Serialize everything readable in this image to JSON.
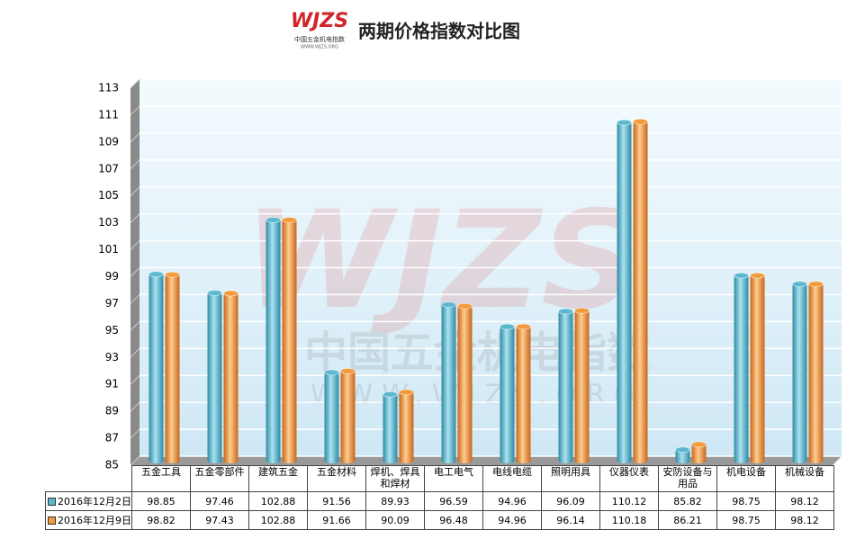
{
  "chart_data": {
    "type": "bar",
    "title": "两期价格指数对比图",
    "logo": "WJZS",
    "logo_subtitle": "中国五金机电指数",
    "logo_url": "WWW.WJZS.ORG",
    "categories": [
      "五金工具",
      "五金零部件",
      "建筑五金",
      "五金材料",
      "焊机、焊具和焊材",
      "电工电气",
      "电线电缆",
      "照明用具",
      "仪器仪表",
      "安防设备与用品",
      "机电设备",
      "机械设备"
    ],
    "series": [
      {
        "name": "2016年12月2日",
        "color": "#5bb8cf",
        "values": [
          98.85,
          97.46,
          102.88,
          91.56,
          89.93,
          96.59,
          94.96,
          96.09,
          110.12,
          85.82,
          98.75,
          98.12
        ]
      },
      {
        "name": "2016年12月9日",
        "color": "#f39a3c",
        "values": [
          98.82,
          97.43,
          102.88,
          91.66,
          90.09,
          96.48,
          94.96,
          96.14,
          110.18,
          86.21,
          98.75,
          98.12
        ]
      }
    ],
    "ylim": [
      85,
      113
    ],
    "yticks": [
      85,
      87,
      89,
      91,
      93,
      95,
      97,
      99,
      101,
      103,
      105,
      107,
      109,
      111,
      113
    ],
    "grid": true
  }
}
